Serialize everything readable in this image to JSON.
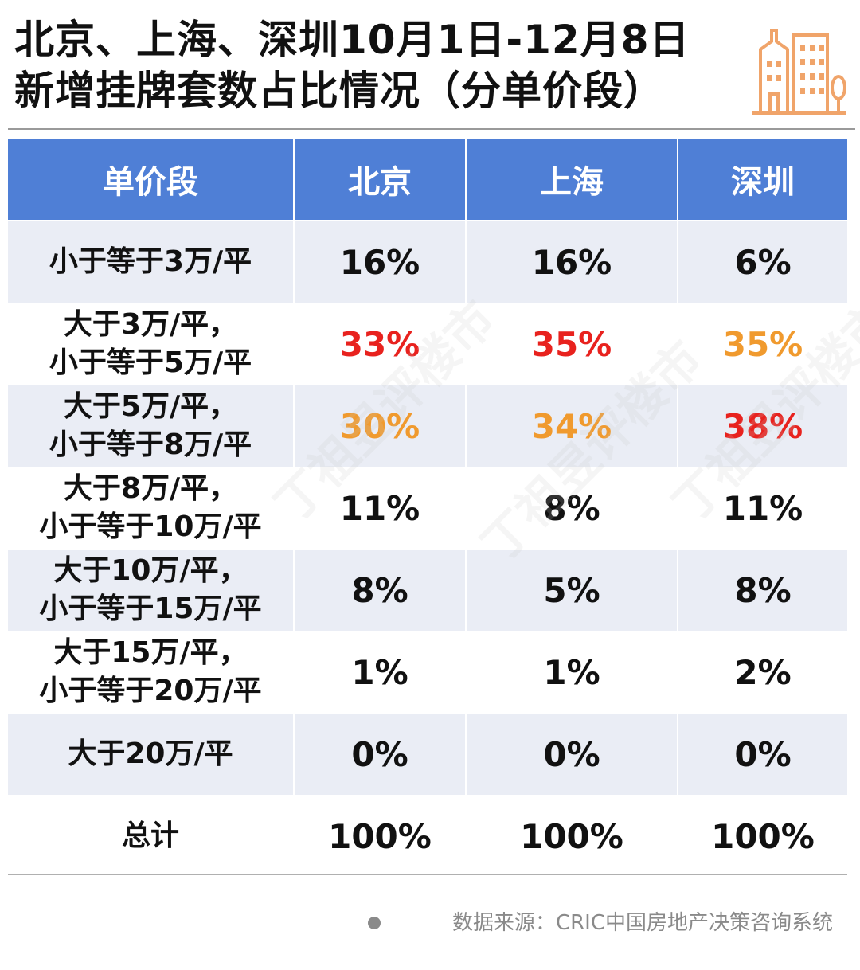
{
  "title": {
    "line1": "北京、上海、深圳10月1日-12月8日",
    "line2": "新增挂牌套数占比情况（分单价段）"
  },
  "colors": {
    "header_bg": "#4f7fd6",
    "row_shade": "#eaedf5",
    "highlight_max": "#e8221e",
    "highlight_second": "#f09a2e",
    "icon": "#f0a46a"
  },
  "icon": "city-buildings-icon",
  "table": {
    "headers": [
      "单价段",
      "北京",
      "上海",
      "深圳"
    ],
    "rows": [
      {
        "range": [
          "小于等于3万/平"
        ],
        "values": [
          "16%",
          "16%",
          "6%"
        ],
        "highlights": [
          "",
          "",
          ""
        ]
      },
      {
        "range": [
          "大于3万/平，",
          "小于等于5万/平"
        ],
        "values": [
          "33%",
          "35%",
          "35%"
        ],
        "highlights": [
          "red",
          "red",
          "orange"
        ]
      },
      {
        "range": [
          "大于5万/平，",
          "小于等于8万/平"
        ],
        "values": [
          "30%",
          "34%",
          "38%"
        ],
        "highlights": [
          "orange",
          "orange",
          "red"
        ]
      },
      {
        "range": [
          "大于8万/平，",
          "小于等于10万/平"
        ],
        "values": [
          "11%",
          "8%",
          "11%"
        ],
        "highlights": [
          "",
          "",
          ""
        ]
      },
      {
        "range": [
          "大于10万/平，",
          "小于等于15万/平"
        ],
        "values": [
          "8%",
          "5%",
          "8%"
        ],
        "highlights": [
          "",
          "",
          ""
        ]
      },
      {
        "range": [
          "大于15万/平，",
          "小于等于20万/平"
        ],
        "values": [
          "1%",
          "1%",
          "2%"
        ],
        "highlights": [
          "",
          "",
          ""
        ]
      },
      {
        "range": [
          "大于20万/平"
        ],
        "values": [
          "0%",
          "0%",
          "0%"
        ],
        "highlights": [
          "",
          "",
          ""
        ]
      },
      {
        "range": [
          "总计"
        ],
        "values": [
          "100%",
          "100%",
          "100%"
        ],
        "highlights": [
          "",
          "",
          ""
        ]
      }
    ]
  },
  "source": "数据来源：CRIC中国房地产决策咨询系统",
  "watermark": "丁祖昱评楼市"
}
